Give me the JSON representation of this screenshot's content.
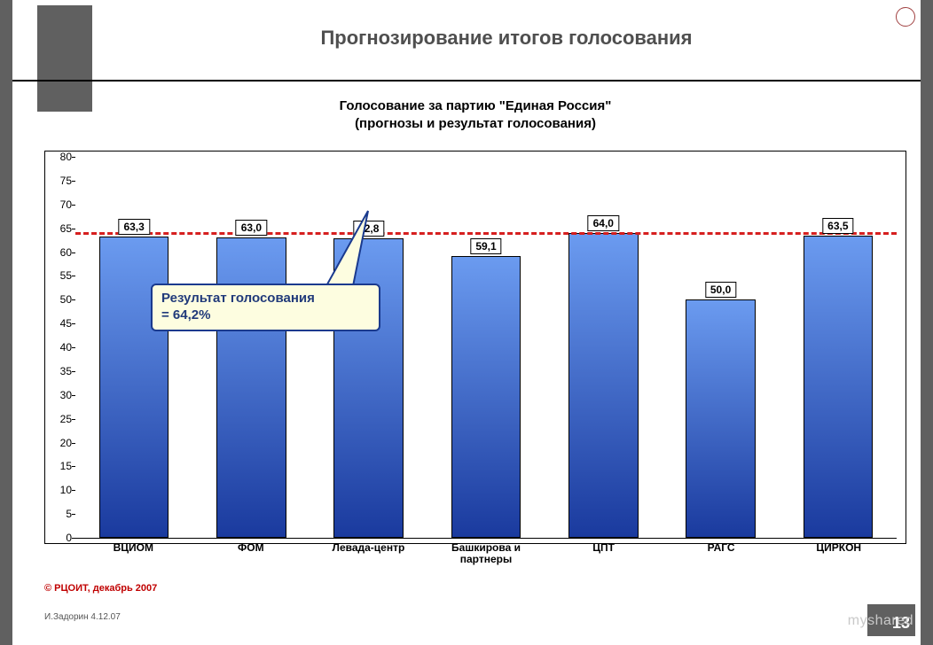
{
  "slide": {
    "title": "Прогнозирование итогов голосования",
    "title_fontsize": 22,
    "title_color": "#4f4f4f",
    "page_number": "13",
    "copyright": "© РЦОИТ, декабрь 2007",
    "copyright_color": "#c00000",
    "author_note": "И.Задорин 4.12.07",
    "watermark": "myshared",
    "side_stripe_color": "#606060"
  },
  "chart": {
    "type": "bar",
    "title_line1": "Голосование за партию \"Единая Россия\"",
    "title_line2": "(прогнозы и результат голосования)",
    "title_fontsize": 15,
    "title_color": "#000000",
    "background_color": "#ffffff",
    "plot_border_color": "#000000",
    "ylim_min": 0,
    "ylim_max": 80,
    "ytick_step": 5,
    "ylabel_fontsize": 12,
    "reference_value": 64.2,
    "reference_color": "#d61f1f",
    "reference_dash": "12 8",
    "bar_fill_top": "#6b9bf0",
    "bar_fill_bottom": "#1a3a9e",
    "bar_border_color": "#000000",
    "bar_width_pct": 8.5,
    "categories": [
      "ВЦИОМ",
      "ФОМ",
      "Левада-центр",
      "Башкирова и партнеры",
      "ЦПТ",
      "РАГС",
      "ЦИРКОН"
    ],
    "values": [
      63.3,
      63.0,
      62.8,
      59.1,
      64.0,
      50.0,
      63.5
    ],
    "value_labels": [
      "63,3",
      "63,0",
      "62,8",
      "59,1",
      "64,0",
      "50,0",
      "63,5"
    ],
    "label_box_bg": "#ffffff",
    "label_box_fontsize": 12
  },
  "callout": {
    "text_line1": "Результат голосования",
    "text_line2": "= 64,2%",
    "fontsize": 15,
    "bg_color": "#fdfde0",
    "border_color": "#1a3a8e",
    "text_color": "#213a7a"
  }
}
